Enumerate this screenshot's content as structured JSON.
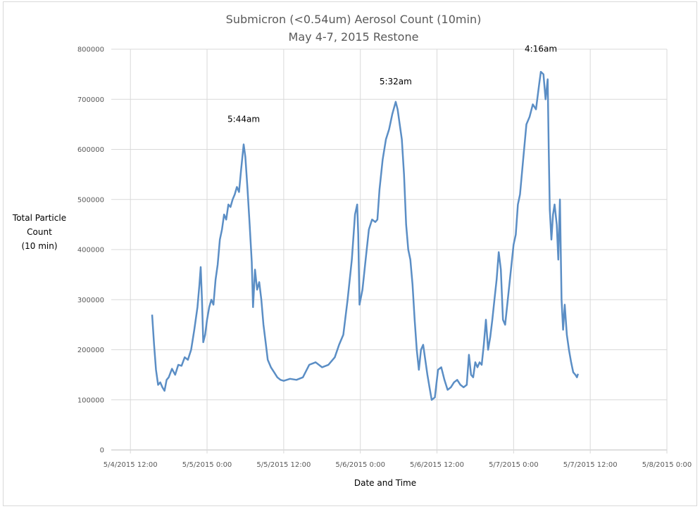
{
  "chart_data": {
    "type": "line",
    "title": "Submicron (<0.54um) Aerosol Count (10min)",
    "subtitle": "May 4-7, 2015 Restone",
    "xlabel": "Date and Time",
    "ylabel_lines": [
      "Total Particle",
      "Count",
      "(10 min)"
    ],
    "ylim": [
      0,
      800000
    ],
    "y_ticks": [
      "0",
      "100000",
      "200000",
      "300000",
      "400000",
      "500000",
      "600000",
      "700000",
      "800000"
    ],
    "x_ticks": [
      "5/4/2015 12:00",
      "5/5/2015 0:00",
      "5/5/2015 12:00",
      "5/6/2015 0:00",
      "5/6/2015 12:00",
      "5/7/2015 0:00",
      "5/7/2015 12:00",
      "5/8/2015 0:00"
    ],
    "xlim": [
      "2015-05-04 09:00",
      "2015-05-08 00:00"
    ],
    "grid": "vertical and horizontal",
    "series": [
      {
        "color": "#5b8ec5",
        "points": [
          [
            "2015-05-04 15:24",
            270000
          ],
          [
            "2015-05-04 15:42",
            210000
          ],
          [
            "2015-05-04 16:00",
            160000
          ],
          [
            "2015-05-04 16:20",
            130000
          ],
          [
            "2015-05-04 16:40",
            135000
          ],
          [
            "2015-05-04 17:00",
            125000
          ],
          [
            "2015-05-04 17:20",
            118000
          ],
          [
            "2015-05-04 17:40",
            140000
          ],
          [
            "2015-05-04 18:00",
            145000
          ],
          [
            "2015-05-04 18:30",
            162000
          ],
          [
            "2015-05-04 19:00",
            150000
          ],
          [
            "2015-05-04 19:30",
            170000
          ],
          [
            "2015-05-04 20:00",
            168000
          ],
          [
            "2015-05-04 20:30",
            185000
          ],
          [
            "2015-05-04 21:00",
            180000
          ],
          [
            "2015-05-04 21:30",
            200000
          ],
          [
            "2015-05-04 22:00",
            240000
          ],
          [
            "2015-05-04 22:30",
            285000
          ],
          [
            "2015-05-04 22:48",
            330000
          ],
          [
            "2015-05-04 23:00",
            365000
          ],
          [
            "2015-05-04 23:12",
            300000
          ],
          [
            "2015-05-04 23:24",
            215000
          ],
          [
            "2015-05-04 23:42",
            230000
          ],
          [
            "2015-05-05 00:00",
            260000
          ],
          [
            "2015-05-05 00:20",
            285000
          ],
          [
            "2015-05-05 00:40",
            300000
          ],
          [
            "2015-05-05 01:00",
            290000
          ],
          [
            "2015-05-05 01:20",
            340000
          ],
          [
            "2015-05-05 01:40",
            370000
          ],
          [
            "2015-05-05 02:00",
            420000
          ],
          [
            "2015-05-05 02:20",
            440000
          ],
          [
            "2015-05-05 02:40",
            470000
          ],
          [
            "2015-05-05 03:00",
            460000
          ],
          [
            "2015-05-05 03:20",
            490000
          ],
          [
            "2015-05-05 03:40",
            485000
          ],
          [
            "2015-05-05 04:00",
            500000
          ],
          [
            "2015-05-05 04:20",
            510000
          ],
          [
            "2015-05-05 04:40",
            525000
          ],
          [
            "2015-05-05 05:00",
            515000
          ],
          [
            "2015-05-05 05:20",
            560000
          ],
          [
            "2015-05-05 05:44",
            610000
          ],
          [
            "2015-05-05 06:00",
            585000
          ],
          [
            "2015-05-05 06:20",
            520000
          ],
          [
            "2015-05-05 06:40",
            450000
          ],
          [
            "2015-05-05 07:00",
            375000
          ],
          [
            "2015-05-05 07:12",
            285000
          ],
          [
            "2015-05-05 07:30",
            360000
          ],
          [
            "2015-05-05 07:50",
            320000
          ],
          [
            "2015-05-05 08:10",
            335000
          ],
          [
            "2015-05-05 08:30",
            300000
          ],
          [
            "2015-05-05 08:50",
            250000
          ],
          [
            "2015-05-05 09:10",
            215000
          ],
          [
            "2015-05-05 09:30",
            180000
          ],
          [
            "2015-05-05 10:00",
            165000
          ],
          [
            "2015-05-05 10:30",
            155000
          ],
          [
            "2015-05-05 11:00",
            145000
          ],
          [
            "2015-05-05 11:30",
            140000
          ],
          [
            "2015-05-05 12:00",
            138000
          ],
          [
            "2015-05-05 13:00",
            142000
          ],
          [
            "2015-05-05 14:00",
            140000
          ],
          [
            "2015-05-05 15:00",
            145000
          ],
          [
            "2015-05-05 16:00",
            170000
          ],
          [
            "2015-05-05 17:00",
            175000
          ],
          [
            "2015-05-05 18:00",
            165000
          ],
          [
            "2015-05-05 19:00",
            170000
          ],
          [
            "2015-05-05 20:00",
            185000
          ],
          [
            "2015-05-05 20:40",
            210000
          ],
          [
            "2015-05-05 21:20",
            230000
          ],
          [
            "2015-05-05 22:00",
            300000
          ],
          [
            "2015-05-05 22:40",
            380000
          ],
          [
            "2015-05-05 23:10",
            470000
          ],
          [
            "2015-05-05 23:30",
            490000
          ],
          [
            "2015-05-05 23:40",
            430000
          ],
          [
            "2015-05-05 23:52",
            290000
          ],
          [
            "2015-05-06 00:20",
            320000
          ],
          [
            "2015-05-06 00:50",
            380000
          ],
          [
            "2015-05-06 01:20",
            440000
          ],
          [
            "2015-05-06 01:50",
            460000
          ],
          [
            "2015-05-06 02:20",
            455000
          ],
          [
            "2015-05-06 02:40",
            460000
          ],
          [
            "2015-05-06 03:00",
            520000
          ],
          [
            "2015-05-06 03:30",
            580000
          ],
          [
            "2015-05-06 04:00",
            620000
          ],
          [
            "2015-05-06 04:30",
            640000
          ],
          [
            "2015-05-06 05:00",
            670000
          ],
          [
            "2015-05-06 05:32",
            695000
          ],
          [
            "2015-05-06 05:50",
            680000
          ],
          [
            "2015-05-06 06:10",
            650000
          ],
          [
            "2015-05-06 06:30",
            620000
          ],
          [
            "2015-05-06 06:50",
            550000
          ],
          [
            "2015-05-06 07:10",
            450000
          ],
          [
            "2015-05-06 07:30",
            400000
          ],
          [
            "2015-05-06 07:50",
            380000
          ],
          [
            "2015-05-06 08:10",
            330000
          ],
          [
            "2015-05-06 08:30",
            260000
          ],
          [
            "2015-05-06 08:50",
            200000
          ],
          [
            "2015-05-06 09:10",
            160000
          ],
          [
            "2015-05-06 09:30",
            200000
          ],
          [
            "2015-05-06 09:50",
            210000
          ],
          [
            "2015-05-06 10:10",
            180000
          ],
          [
            "2015-05-06 10:30",
            150000
          ],
          [
            "2015-05-06 10:50",
            125000
          ],
          [
            "2015-05-06 11:10",
            100000
          ],
          [
            "2015-05-06 11:40",
            105000
          ],
          [
            "2015-05-06 12:10",
            160000
          ],
          [
            "2015-05-06 12:40",
            165000
          ],
          [
            "2015-05-06 13:10",
            140000
          ],
          [
            "2015-05-06 13:40",
            120000
          ],
          [
            "2015-05-06 14:10",
            125000
          ],
          [
            "2015-05-06 14:40",
            135000
          ],
          [
            "2015-05-06 15:10",
            140000
          ],
          [
            "2015-05-06 15:40",
            130000
          ],
          [
            "2015-05-06 16:10",
            125000
          ],
          [
            "2015-05-06 16:40",
            130000
          ],
          [
            "2015-05-06 17:00",
            190000
          ],
          [
            "2015-05-06 17:20",
            150000
          ],
          [
            "2015-05-06 17:40",
            145000
          ],
          [
            "2015-05-06 18:00",
            175000
          ],
          [
            "2015-05-06 18:20",
            165000
          ],
          [
            "2015-05-06 18:40",
            175000
          ],
          [
            "2015-05-06 19:00",
            170000
          ],
          [
            "2015-05-06 19:20",
            210000
          ],
          [
            "2015-05-06 19:40",
            260000
          ],
          [
            "2015-05-06 20:00",
            200000
          ],
          [
            "2015-05-06 20:20",
            225000
          ],
          [
            "2015-05-06 20:40",
            260000
          ],
          [
            "2015-05-06 21:00",
            300000
          ],
          [
            "2015-05-06 21:20",
            340000
          ],
          [
            "2015-05-06 21:40",
            395000
          ],
          [
            "2015-05-06 22:00",
            360000
          ],
          [
            "2015-05-06 22:20",
            260000
          ],
          [
            "2015-05-06 22:40",
            250000
          ],
          [
            "2015-05-06 23:00",
            290000
          ],
          [
            "2015-05-06 23:30",
            350000
          ],
          [
            "2015-05-07 00:00",
            410000
          ],
          [
            "2015-05-07 00:20",
            430000
          ],
          [
            "2015-05-07 00:40",
            490000
          ],
          [
            "2015-05-07 01:00",
            510000
          ],
          [
            "2015-05-07 01:30",
            580000
          ],
          [
            "2015-05-07 02:00",
            650000
          ],
          [
            "2015-05-07 02:30",
            665000
          ],
          [
            "2015-05-07 03:00",
            690000
          ],
          [
            "2015-05-07 03:30",
            680000
          ],
          [
            "2015-05-07 04:00",
            730000
          ],
          [
            "2015-05-07 04:16",
            755000
          ],
          [
            "2015-05-07 04:40",
            750000
          ],
          [
            "2015-05-07 05:00",
            700000
          ],
          [
            "2015-05-07 05:20",
            740000
          ],
          [
            "2015-05-07 05:30",
            600000
          ],
          [
            "2015-05-07 05:40",
            480000
          ],
          [
            "2015-05-07 05:55",
            420000
          ],
          [
            "2015-05-07 06:10",
            470000
          ],
          [
            "2015-05-07 06:25",
            490000
          ],
          [
            "2015-05-07 06:45",
            450000
          ],
          [
            "2015-05-07 07:00",
            380000
          ],
          [
            "2015-05-07 07:15",
            500000
          ],
          [
            "2015-05-07 07:30",
            300000
          ],
          [
            "2015-05-07 07:45",
            240000
          ],
          [
            "2015-05-07 08:00",
            290000
          ],
          [
            "2015-05-07 08:20",
            230000
          ],
          [
            "2015-05-07 08:40",
            200000
          ],
          [
            "2015-05-07 09:00",
            175000
          ],
          [
            "2015-05-07 09:20",
            155000
          ],
          [
            "2015-05-07 09:40",
            150000
          ],
          [
            "2015-05-07 09:55",
            145000
          ],
          [
            "2015-05-07 10:05",
            152000
          ]
        ]
      }
    ],
    "annotations": [
      {
        "text": "5:44am",
        "x": "2015-05-05 05:44",
        "y": 655000
      },
      {
        "text": "5:32am",
        "x": "2015-05-06 05:32",
        "y": 730000
      },
      {
        "text": "4:16am",
        "x": "2015-05-07 04:16",
        "y": 795000
      }
    ]
  }
}
